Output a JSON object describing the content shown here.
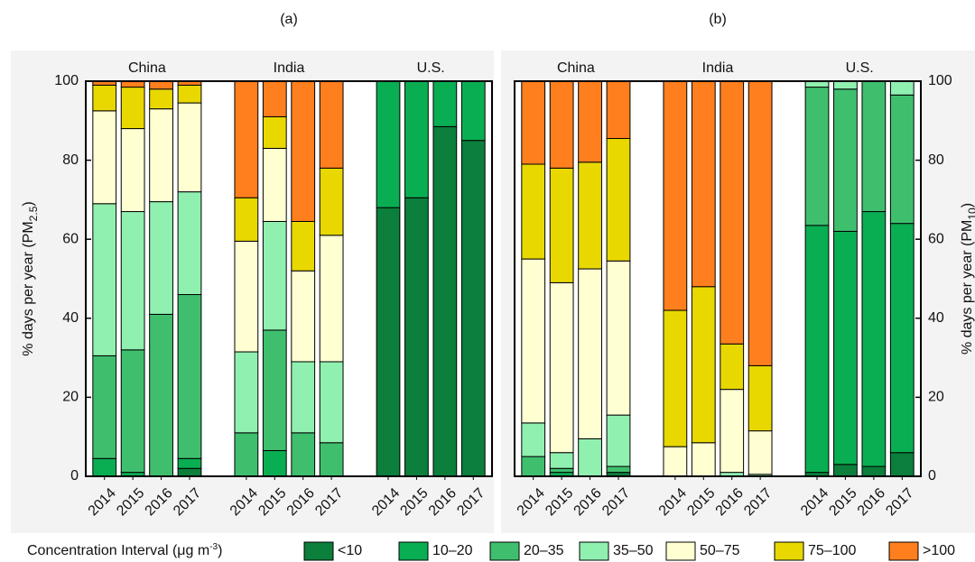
{
  "chart_data": [
    {
      "type": "stacked_bar",
      "title": "(a)",
      "y_label": {
        "main": "% days per year (PM",
        "subscript": "2.5",
        "close": ")"
      },
      "y_axis_side": "left",
      "legend_title": {
        "main": "Concentration Interval (μg m",
        "superscript": "-3",
        "close": ")"
      },
      "groups": [
        "China",
        "India",
        "U.S."
      ],
      "categories": [
        "2014",
        "2015",
        "2016",
        "2017",
        "2014",
        "2015",
        "2016",
        "2017",
        "2014",
        "2015",
        "2016",
        "2017"
      ],
      "ylim": [
        0,
        100
      ],
      "yticks": [
        0,
        20,
        40,
        60,
        80,
        100
      ],
      "series": [
        {
          "name": "<10",
          "color": "#0b7f3b",
          "values": [
            0,
            0,
            0,
            2,
            0,
            0,
            0,
            0,
            68,
            70.5,
            88.5,
            85
          ]
        },
        {
          "name": "10–20",
          "color": "#0aae52",
          "values": [
            4.5,
            1,
            0,
            2.5,
            0,
            6.5,
            0,
            0,
            32,
            29.5,
            11.5,
            15
          ]
        },
        {
          "name": "20–35",
          "color": "#3fbf6e",
          "values": [
            26,
            31,
            41,
            41.5,
            11,
            30.5,
            11,
            8.5,
            0,
            0,
            0,
            0
          ]
        },
        {
          "name": "35–50",
          "color": "#90f0b0",
          "values": [
            38.5,
            35,
            28.5,
            26,
            20.5,
            27.5,
            18,
            20.5,
            0,
            0,
            0,
            0
          ]
        },
        {
          "name": "50–75",
          "color": "#ffffd2",
          "values": [
            23.5,
            21,
            23.5,
            22.5,
            28,
            18.5,
            23,
            32,
            0,
            0,
            0,
            0
          ]
        },
        {
          "name": "75–100",
          "color": "#e8d800",
          "values": [
            6.5,
            10.5,
            5,
            4.5,
            11,
            8,
            12.5,
            17,
            0,
            0,
            0,
            0
          ]
        },
        {
          "name": ">100",
          "color": "#ff7f1e",
          "values": [
            1,
            1.5,
            2,
            1,
            29.5,
            9,
            35.5,
            22,
            0,
            0,
            0,
            0
          ]
        }
      ]
    },
    {
      "type": "stacked_bar",
      "title": "(b)",
      "y_label": {
        "main": "% days per year (PM",
        "subscript": "10",
        "close": ")"
      },
      "y_axis_side": "right",
      "groups": [
        "China",
        "India",
        "U.S."
      ],
      "categories": [
        "2014",
        "2015",
        "2016",
        "2017",
        "2014",
        "2015",
        "2016",
        "2017",
        "2014",
        "2015",
        "2016",
        "2017"
      ],
      "ylim": [
        0,
        100
      ],
      "yticks": [
        0,
        20,
        40,
        60,
        80,
        100
      ],
      "series": [
        {
          "name": "<10",
          "color": "#0b7f3b",
          "values": [
            0,
            0,
            0,
            1,
            0,
            0,
            0,
            0,
            1,
            3,
            2.5,
            6
          ]
        },
        {
          "name": "10–20",
          "color": "#0aae52",
          "values": [
            0,
            1,
            0,
            0,
            0,
            0,
            0,
            0,
            62.5,
            59,
            64.5,
            58
          ]
        },
        {
          "name": "20–35",
          "color": "#3fbf6e",
          "values": [
            5,
            1,
            0,
            1.5,
            0,
            0,
            0,
            0,
            35,
            36,
            33,
            32.5
          ]
        },
        {
          "name": "35–50",
          "color": "#90f0b0",
          "values": [
            8.5,
            4,
            9.5,
            13,
            0,
            0,
            1,
            0.5,
            1.5,
            2,
            0,
            3.5
          ]
        },
        {
          "name": "50–75",
          "color": "#ffffd2",
          "values": [
            41.5,
            43,
            43,
            39,
            7.5,
            8.5,
            21,
            11,
            0,
            0,
            0,
            0
          ]
        },
        {
          "name": "75–100",
          "color": "#e8d800",
          "values": [
            24,
            29,
            27,
            31,
            34.5,
            39.5,
            11.5,
            16.5,
            0,
            0,
            0,
            0
          ]
        },
        {
          "name": ">100",
          "color": "#ff7f1e",
          "values": [
            21,
            22,
            20.5,
            14.5,
            58,
            52,
            66.5,
            72,
            0,
            0,
            0,
            0
          ]
        }
      ]
    }
  ]
}
